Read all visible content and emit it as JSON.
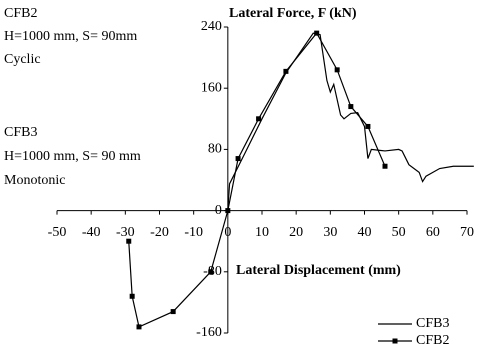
{
  "chart_data": {
    "type": "line",
    "y_label": "Lateral Force, F (kN)",
    "x_label": "Lateral Displacement (mm)",
    "annotations": [
      "CFB2",
      "H=1000 mm, S= 90mm",
      "Cyclic",
      "CFB3",
      "H=1000 mm, S= 90 mm",
      "Monotonic"
    ],
    "xlim": [
      -50,
      70
    ],
    "xticks": [
      -50,
      -40,
      -30,
      -20,
      -10,
      0,
      10,
      20,
      30,
      40,
      50,
      60,
      70
    ],
    "ylim": [
      -160,
      240
    ],
    "yticks": [
      -160,
      -80,
      0,
      80,
      160,
      240
    ],
    "legend": "lower right",
    "series": [
      {
        "name": "CFB3",
        "color": "#000000",
        "marker": "none",
        "x": [
          0,
          0.5,
          5,
          10,
          17,
          25,
          27,
          29,
          30,
          31,
          33,
          34,
          36,
          38,
          40,
          41,
          42,
          46,
          50,
          51,
          53,
          56,
          57,
          58,
          62,
          66,
          69,
          72
        ],
        "values": [
          0,
          35,
          75,
          120,
          180,
          232,
          230,
          170,
          155,
          165,
          125,
          120,
          127,
          128,
          110,
          68,
          80,
          78,
          80,
          78,
          60,
          50,
          38,
          45,
          55,
          58,
          58,
          58
        ]
      },
      {
        "name": "CFB2",
        "color": "#000000",
        "marker": "square",
        "x": [
          -29,
          -28,
          -26,
          -16,
          -5,
          0,
          3,
          9,
          17,
          26,
          32,
          36,
          41,
          46
        ],
        "values": [
          -40,
          -112,
          -152,
          -132,
          -80,
          0,
          68,
          120,
          182,
          232,
          184,
          136,
          110,
          58
        ]
      }
    ]
  }
}
